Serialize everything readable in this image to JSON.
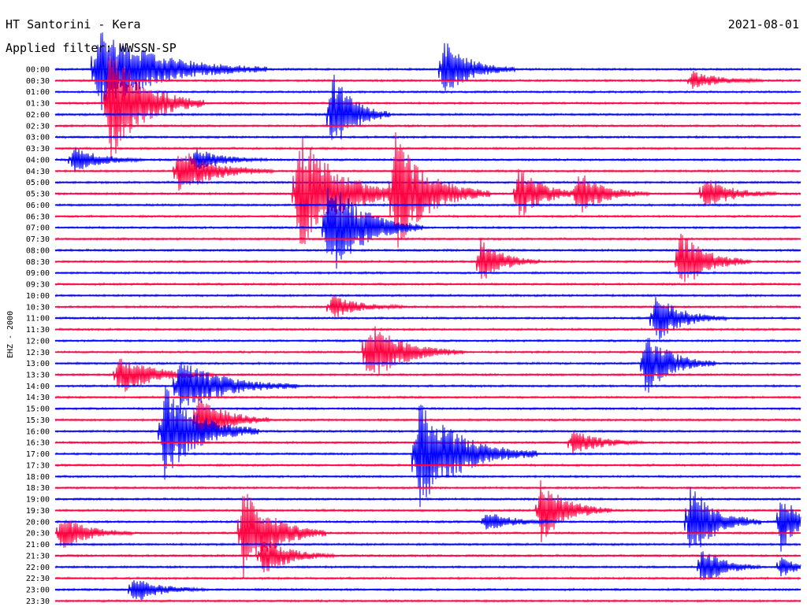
{
  "header": {
    "station": "HT Santorini - Kera",
    "date": "2021-08-01",
    "filter": "Applied filter: WWSSN-SP",
    "channel": "EHZ - 2000"
  },
  "colors": {
    "background": "#ffffff",
    "trace_a": "#0000ff",
    "trace_b": "#ff0040",
    "text": "#000000"
  },
  "chart_data": {
    "type": "helicorder",
    "rows": [
      {
        "time": "00:00",
        "color": "#0000ff"
      },
      {
        "time": "00:30",
        "color": "#ff0040"
      },
      {
        "time": "01:00",
        "color": "#0000ff"
      },
      {
        "time": "01:30",
        "color": "#ff0040"
      },
      {
        "time": "02:00",
        "color": "#0000ff"
      },
      {
        "time": "02:30",
        "color": "#ff0040"
      },
      {
        "time": "03:00",
        "color": "#0000ff"
      },
      {
        "time": "03:30",
        "color": "#ff0040"
      },
      {
        "time": "04:00",
        "color": "#0000ff"
      },
      {
        "time": "04:30",
        "color": "#ff0040"
      },
      {
        "time": "05:00",
        "color": "#0000ff"
      },
      {
        "time": "05:30",
        "color": "#ff0040"
      },
      {
        "time": "06:00",
        "color": "#0000ff"
      },
      {
        "time": "06:30",
        "color": "#ff0040"
      },
      {
        "time": "07:00",
        "color": "#0000ff"
      },
      {
        "time": "07:30",
        "color": "#ff0040"
      },
      {
        "time": "08:00",
        "color": "#0000ff"
      },
      {
        "time": "08:30",
        "color": "#ff0040"
      },
      {
        "time": "09:00",
        "color": "#0000ff"
      },
      {
        "time": "09:30",
        "color": "#ff0040"
      },
      {
        "time": "10:00",
        "color": "#0000ff"
      },
      {
        "time": "10:30",
        "color": "#ff0040"
      },
      {
        "time": "11:00",
        "color": "#0000ff"
      },
      {
        "time": "11:30",
        "color": "#ff0040"
      },
      {
        "time": "12:00",
        "color": "#0000ff"
      },
      {
        "time": "12:30",
        "color": "#ff0040"
      },
      {
        "time": "13:00",
        "color": "#0000ff"
      },
      {
        "time": "13:30",
        "color": "#ff0040"
      },
      {
        "time": "14:00",
        "color": "#0000ff"
      },
      {
        "time": "14:30",
        "color": "#ff0040"
      },
      {
        "time": "15:00",
        "color": "#0000ff"
      },
      {
        "time": "15:30",
        "color": "#ff0040"
      },
      {
        "time": "16:00",
        "color": "#0000ff"
      },
      {
        "time": "16:30",
        "color": "#ff0040"
      },
      {
        "time": "17:00",
        "color": "#0000ff"
      },
      {
        "time": "17:30",
        "color": "#ff0040"
      },
      {
        "time": "18:00",
        "color": "#0000ff"
      },
      {
        "time": "18:30",
        "color": "#ff0040"
      },
      {
        "time": "19:00",
        "color": "#0000ff"
      },
      {
        "time": "19:30",
        "color": "#ff0040"
      },
      {
        "time": "20:00",
        "color": "#0000ff"
      },
      {
        "time": "20:30",
        "color": "#ff0040"
      },
      {
        "time": "21:00",
        "color": "#0000ff"
      },
      {
        "time": "21:30",
        "color": "#ff0040"
      },
      {
        "time": "22:00",
        "color": "#0000ff"
      },
      {
        "time": "22:30",
        "color": "#ff0040"
      },
      {
        "time": "23:00",
        "color": "#0000ff"
      },
      {
        "time": "23:30",
        "color": "#ff0040"
      }
    ],
    "row_duration_minutes": 30,
    "events": [
      {
        "row": 0,
        "minute": 1.5,
        "amplitude": 60,
        "duration_min": 7
      },
      {
        "row": 0,
        "minute": 15.5,
        "amplitude": 45,
        "duration_min": 3
      },
      {
        "row": 1,
        "minute": 25.5,
        "amplitude": 14,
        "duration_min": 3
      },
      {
        "row": 3,
        "minute": 2.0,
        "amplitude": 90,
        "duration_min": 4
      },
      {
        "row": 4,
        "minute": 11.0,
        "amplitude": 70,
        "duration_min": 2.5
      },
      {
        "row": 8,
        "minute": 0.6,
        "amplitude": 20,
        "duration_min": 3
      },
      {
        "row": 8,
        "minute": 5.5,
        "amplitude": 18,
        "duration_min": 3
      },
      {
        "row": 9,
        "minute": 4.8,
        "amplitude": 35,
        "duration_min": 4
      },
      {
        "row": 11,
        "minute": 9.6,
        "amplitude": 90,
        "duration_min": 5
      },
      {
        "row": 11,
        "minute": 13.5,
        "amplitude": 85,
        "duration_min": 4
      },
      {
        "row": 11,
        "minute": 18.5,
        "amplitude": 40,
        "duration_min": 3
      },
      {
        "row": 11,
        "minute": 20.9,
        "amplitude": 32,
        "duration_min": 3
      },
      {
        "row": 11,
        "minute": 26.0,
        "amplitude": 25,
        "duration_min": 3
      },
      {
        "row": 14,
        "minute": 10.8,
        "amplitude": 80,
        "duration_min": 4
      },
      {
        "row": 17,
        "minute": 17.0,
        "amplitude": 36,
        "duration_min": 2.5
      },
      {
        "row": 17,
        "minute": 25.0,
        "amplitude": 48,
        "duration_min": 3
      },
      {
        "row": 21,
        "minute": 11.0,
        "amplitude": 18,
        "duration_min": 3
      },
      {
        "row": 22,
        "minute": 24.0,
        "amplitude": 38,
        "duration_min": 3
      },
      {
        "row": 25,
        "minute": 12.4,
        "amplitude": 48,
        "duration_min": 4
      },
      {
        "row": 26,
        "minute": 23.6,
        "amplitude": 50,
        "duration_min": 3
      },
      {
        "row": 27,
        "minute": 2.4,
        "amplitude": 30,
        "duration_min": 4
      },
      {
        "row": 28,
        "minute": 4.8,
        "amplitude": 42,
        "duration_min": 5
      },
      {
        "row": 31,
        "minute": 5.6,
        "amplitude": 46,
        "duration_min": 3
      },
      {
        "row": 32,
        "minute": 4.2,
        "amplitude": 72,
        "duration_min": 4
      },
      {
        "row": 33,
        "minute": 20.7,
        "amplitude": 20,
        "duration_min": 3
      },
      {
        "row": 34,
        "minute": 14.4,
        "amplitude": 80,
        "duration_min": 5
      },
      {
        "row": 39,
        "minute": 19.4,
        "amplitude": 48,
        "duration_min": 3
      },
      {
        "row": 40,
        "minute": 17.2,
        "amplitude": 15,
        "duration_min": 3
      },
      {
        "row": 40,
        "minute": 25.4,
        "amplitude": 60,
        "duration_min": 3
      },
      {
        "row": 40,
        "minute": 29.1,
        "amplitude": 45,
        "duration_min": 2
      },
      {
        "row": 41,
        "minute": 0.1,
        "amplitude": 28,
        "duration_min": 3
      },
      {
        "row": 41,
        "minute": 7.4,
        "amplitude": 70,
        "duration_min": 3.5
      },
      {
        "row": 43,
        "minute": 8.2,
        "amplitude": 30,
        "duration_min": 3
      },
      {
        "row": 44,
        "minute": 25.9,
        "amplitude": 30,
        "duration_min": 2.5
      },
      {
        "row": 44,
        "minute": 29.1,
        "amplitude": 16,
        "duration_min": 2
      },
      {
        "row": 46,
        "minute": 3.0,
        "amplitude": 20,
        "duration_min": 3
      }
    ]
  }
}
